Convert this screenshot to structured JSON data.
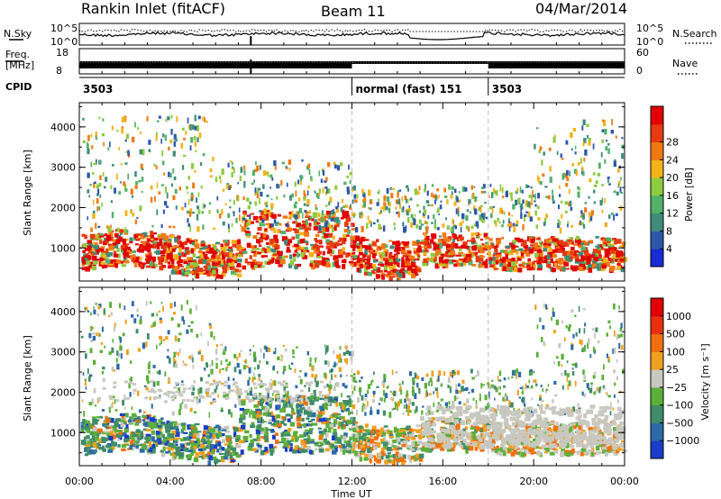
{
  "header": {
    "station": "Rankin Inlet (fitACF)",
    "beam": "Beam 11",
    "date": "04/Mar/2014"
  },
  "nsky_panel": {
    "left_label": "N.Sky",
    "right_label": "N.Search",
    "left_ticks": [
      "10^5",
      "10^0"
    ],
    "right_ticks": [
      "10^5",
      "10^0"
    ]
  },
  "freq_panel": {
    "left_label_line1": "Freq.",
    "left_label_line2": "[MHz]",
    "right_label": "Nave",
    "left_ticks": [
      "18",
      "8"
    ],
    "right_ticks": [
      "60",
      "0"
    ]
  },
  "cpid_panel": {
    "label": "CPID",
    "segments": [
      {
        "start_hour": 0,
        "text": "3503"
      },
      {
        "start_hour": 12,
        "text": "normal (fast) 151"
      },
      {
        "start_hour": 18,
        "text": "3503"
      }
    ]
  },
  "chart_data": [
    {
      "type": "heatmap",
      "name": "power",
      "ylabel": "Slant Range [km]",
      "xlim": [
        0,
        24
      ],
      "ylim": [
        180,
        4600
      ],
      "yticks": [
        "1000",
        "2000",
        "3000",
        "4000"
      ],
      "colorbar": {
        "label": "Power [dB]",
        "ticks": [
          "4",
          "8",
          "12",
          "16",
          "20",
          "24",
          "28"
        ],
        "colors": [
          "#1a2bd6",
          "#2d57a8",
          "#3f8c7a",
          "#52b06a",
          "#8ecb3f",
          "#f2b31a",
          "#f07a12",
          "#e63a10",
          "#e00000"
        ]
      }
    },
    {
      "type": "heatmap",
      "name": "velocity",
      "ylabel": "Slant Range [km]",
      "xlabel": "Time UT",
      "xlim": [
        0,
        24
      ],
      "ylim": [
        180,
        4600
      ],
      "yticks": [
        "1000",
        "2000",
        "3000",
        "4000"
      ],
      "xticks": [
        "00:00",
        "04:00",
        "08:00",
        "12:00",
        "16:00",
        "20:00",
        "00:00"
      ],
      "colorbar": {
        "label": "Velocity [m s⁻¹]",
        "ticks": [
          "1000",
          "500",
          "100",
          "25",
          "−25",
          "−100",
          "−500",
          "−1000"
        ],
        "colors": [
          "#1a3dc8",
          "#2d6aa8",
          "#3f8c6a",
          "#5cb03a",
          "#c8c8c0",
          "#f0a020",
          "#f07010",
          "#e83010",
          "#e00000"
        ]
      }
    }
  ]
}
